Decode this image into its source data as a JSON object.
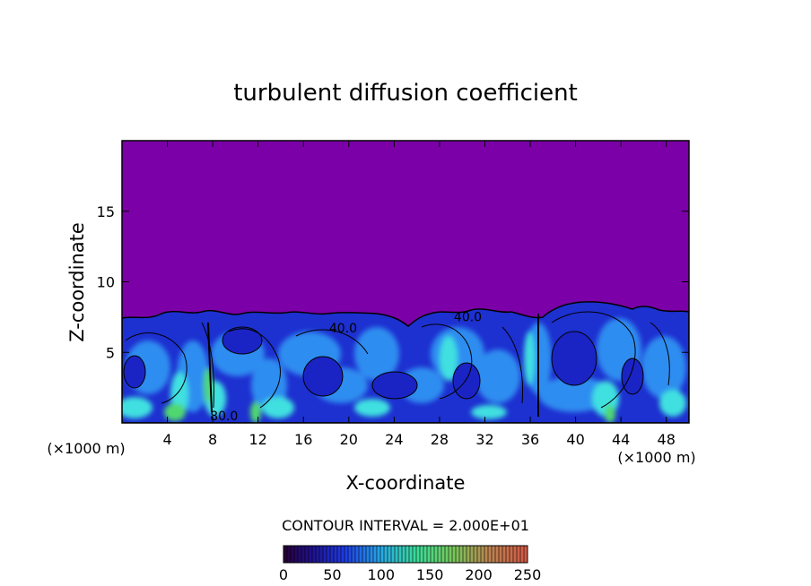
{
  "chart_data": {
    "type": "heatmap",
    "title": "turbulent diffusion coefficient",
    "xlabel": "X-coordinate",
    "ylabel": "Z-coordinate",
    "x_unit_left": "(×1000 m)",
    "x_unit_right": "(×1000 m)",
    "xlim": [
      0,
      50
    ],
    "ylim": [
      0,
      20
    ],
    "xticks": [
      4,
      8,
      12,
      16,
      20,
      24,
      28,
      32,
      36,
      40,
      44,
      48
    ],
    "yticks": [
      5,
      10,
      15
    ],
    "contour_interval_text": "CONTOUR INTERVAL = 2.000E+01",
    "colorbar": {
      "ticks": [
        0,
        50,
        100,
        150,
        200,
        250
      ],
      "range": [
        0,
        250
      ]
    },
    "contour_labels": [
      {
        "text": "40.0",
        "x": 19.5,
        "z": 6.4
      },
      {
        "text": "40.0",
        "x": 30.5,
        "z": 7.2
      },
      {
        "text": "80.0",
        "x": 9.0,
        "z": 0.2
      }
    ],
    "colors": {
      "background_field": "#7b00a8",
      "low": "#1c2bd6",
      "mid": "#2f8df0",
      "high": "#3fe0e0",
      "peak": "#4fd870"
    }
  }
}
